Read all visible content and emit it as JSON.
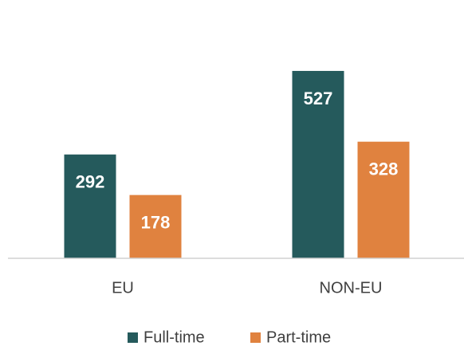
{
  "chart_data": {
    "type": "bar",
    "categories": [
      "EU",
      "NON-EU"
    ],
    "series": [
      {
        "name": "Full-time",
        "color": "#255a5c",
        "values": [
          292,
          527
        ]
      },
      {
        "name": "Part-time",
        "color": "#e0823f",
        "values": [
          178,
          328
        ]
      }
    ],
    "ylim": [
      0,
      600
    ]
  }
}
